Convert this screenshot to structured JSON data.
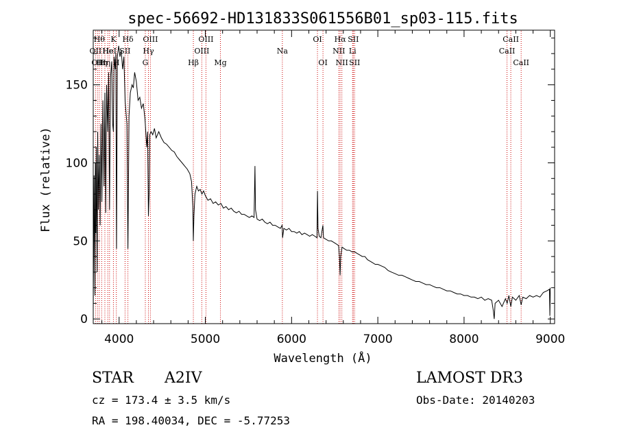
{
  "chart_data": {
    "type": "line",
    "title": "spec-56692-HD131833S061556B01_sp03-115.fits",
    "xlabel": "Wavelength (Å)",
    "ylabel": "Flux (relative)",
    "xlim": [
      3700,
      9050
    ],
    "ylim": [
      -3,
      185
    ],
    "xticks": [
      4000,
      5000,
      6000,
      7000,
      8000,
      9000
    ],
    "yticks": [
      0,
      50,
      100,
      150
    ],
    "xtick_labels": [
      "4000",
      "5000",
      "6000",
      "7000",
      "8000",
      "9000"
    ],
    "ytick_labels": [
      "0",
      "50",
      "100",
      "150"
    ],
    "grid": false,
    "line_color": "#000000",
    "marker_line_color": "#cc0000",
    "series": [
      {
        "points": [
          [
            3700,
            5
          ],
          [
            3710,
            92
          ],
          [
            3720,
            15
          ],
          [
            3725,
            100
          ],
          [
            3730,
            55
          ],
          [
            3735,
            110
          ],
          [
            3745,
            30
          ],
          [
            3752,
            120
          ],
          [
            3760,
            70
          ],
          [
            3770,
            105
          ],
          [
            3780,
            60
          ],
          [
            3790,
            125
          ],
          [
            3800,
            75
          ],
          [
            3812,
            140
          ],
          [
            3825,
            85
          ],
          [
            3835,
            145
          ],
          [
            3845,
            68
          ],
          [
            3855,
            150
          ],
          [
            3868,
            120
          ],
          [
            3878,
            158
          ],
          [
            3889,
            70
          ],
          [
            3900,
            155
          ],
          [
            3915,
            165
          ],
          [
            3925,
            125
          ],
          [
            3934,
            120
          ],
          [
            3942,
            168
          ],
          [
            3955,
            160
          ],
          [
            3962,
            170
          ],
          [
            3970,
            45
          ],
          [
            3980,
            168
          ],
          [
            3995,
            175
          ],
          [
            4010,
            168
          ],
          [
            4025,
            172
          ],
          [
            4040,
            160
          ],
          [
            4055,
            168
          ],
          [
            4070,
            140
          ],
          [
            4090,
            125
          ],
          [
            4102,
            45
          ],
          [
            4115,
            130
          ],
          [
            4130,
            145
          ],
          [
            4150,
            150
          ],
          [
            4165,
            148
          ],
          [
            4180,
            158
          ],
          [
            4200,
            152
          ],
          [
            4220,
            140
          ],
          [
            4240,
            142
          ],
          [
            4260,
            135
          ],
          [
            4280,
            138
          ],
          [
            4300,
            128
          ],
          [
            4320,
            110
          ],
          [
            4330,
            120
          ],
          [
            4340,
            66
          ],
          [
            4348,
            80
          ],
          [
            4356,
            118
          ],
          [
            4370,
            120
          ],
          [
            4390,
            118
          ],
          [
            4410,
            122
          ],
          [
            4430,
            116
          ],
          [
            4460,
            120
          ],
          [
            4490,
            116
          ],
          [
            4520,
            113
          ],
          [
            4550,
            112
          ],
          [
            4580,
            110
          ],
          [
            4610,
            108
          ],
          [
            4640,
            107
          ],
          [
            4670,
            104
          ],
          [
            4700,
            102
          ],
          [
            4730,
            100
          ],
          [
            4760,
            98
          ],
          [
            4790,
            96
          ],
          [
            4820,
            93
          ],
          [
            4840,
            88
          ],
          [
            4855,
            72
          ],
          [
            4861,
            50
          ],
          [
            4868,
            66
          ],
          [
            4880,
            80
          ],
          [
            4900,
            85
          ],
          [
            4920,
            82
          ],
          [
            4940,
            83
          ],
          [
            4960,
            80
          ],
          [
            4980,
            82
          ],
          [
            5000,
            79
          ],
          [
            5030,
            76
          ],
          [
            5060,
            77
          ],
          [
            5090,
            74
          ],
          [
            5120,
            75
          ],
          [
            5150,
            73
          ],
          [
            5180,
            74
          ],
          [
            5210,
            71
          ],
          [
            5240,
            72
          ],
          [
            5270,
            70
          ],
          [
            5300,
            71
          ],
          [
            5330,
            69
          ],
          [
            5360,
            68
          ],
          [
            5390,
            69
          ],
          [
            5420,
            67
          ],
          [
            5450,
            67
          ],
          [
            5480,
            66
          ],
          [
            5510,
            65
          ],
          [
            5540,
            66
          ],
          [
            5565,
            65
          ],
          [
            5575,
            98
          ],
          [
            5582,
            70
          ],
          [
            5600,
            64
          ],
          [
            5630,
            63
          ],
          [
            5660,
            64
          ],
          [
            5690,
            62
          ],
          [
            5720,
            61
          ],
          [
            5750,
            62
          ],
          [
            5780,
            60
          ],
          [
            5810,
            60
          ],
          [
            5840,
            59
          ],
          [
            5870,
            58
          ],
          [
            5890,
            60
          ],
          [
            5896,
            52
          ],
          [
            5910,
            58
          ],
          [
            5940,
            57
          ],
          [
            5970,
            58
          ],
          [
            6000,
            56
          ],
          [
            6030,
            56
          ],
          [
            6060,
            55
          ],
          [
            6090,
            56
          ],
          [
            6120,
            54
          ],
          [
            6150,
            55
          ],
          [
            6180,
            54
          ],
          [
            6210,
            53
          ],
          [
            6240,
            54
          ],
          [
            6270,
            53
          ],
          [
            6295,
            52
          ],
          [
            6300,
            82
          ],
          [
            6307,
            58
          ],
          [
            6320,
            53
          ],
          [
            6340,
            52
          ],
          [
            6363,
            60
          ],
          [
            6370,
            52
          ],
          [
            6400,
            51
          ],
          [
            6430,
            50
          ],
          [
            6460,
            50
          ],
          [
            6490,
            49
          ],
          [
            6520,
            48
          ],
          [
            6545,
            47
          ],
          [
            6555,
            40
          ],
          [
            6563,
            28
          ],
          [
            6570,
            40
          ],
          [
            6585,
            46
          ],
          [
            6610,
            45
          ],
          [
            6640,
            44
          ],
          [
            6670,
            44
          ],
          [
            6700,
            43
          ],
          [
            6730,
            43
          ],
          [
            6760,
            42
          ],
          [
            6790,
            41
          ],
          [
            6820,
            40
          ],
          [
            6850,
            40
          ],
          [
            6880,
            38
          ],
          [
            6910,
            37
          ],
          [
            6940,
            36
          ],
          [
            6970,
            35
          ],
          [
            7000,
            35
          ],
          [
            7040,
            34
          ],
          [
            7080,
            33
          ],
          [
            7120,
            31
          ],
          [
            7160,
            30
          ],
          [
            7200,
            29
          ],
          [
            7240,
            28
          ],
          [
            7280,
            28
          ],
          [
            7320,
            27
          ],
          [
            7360,
            26
          ],
          [
            7400,
            25
          ],
          [
            7440,
            24
          ],
          [
            7480,
            24
          ],
          [
            7520,
            23
          ],
          [
            7560,
            22
          ],
          [
            7600,
            22
          ],
          [
            7640,
            21
          ],
          [
            7680,
            20
          ],
          [
            7720,
            20
          ],
          [
            7760,
            19
          ],
          [
            7800,
            18
          ],
          [
            7840,
            18
          ],
          [
            7880,
            17
          ],
          [
            7920,
            16
          ],
          [
            7960,
            16
          ],
          [
            8000,
            15
          ],
          [
            8040,
            15
          ],
          [
            8080,
            14
          ],
          [
            8120,
            14
          ],
          [
            8160,
            13
          ],
          [
            8200,
            14
          ],
          [
            8240,
            12
          ],
          [
            8280,
            13
          ],
          [
            8320,
            12
          ],
          [
            8340,
            5
          ],
          [
            8350,
            0
          ],
          [
            8360,
            10
          ],
          [
            8400,
            12
          ],
          [
            8440,
            8
          ],
          [
            8480,
            13
          ],
          [
            8500,
            10
          ],
          [
            8520,
            15
          ],
          [
            8542,
            8
          ],
          [
            8560,
            14
          ],
          [
            8600,
            12
          ],
          [
            8640,
            15
          ],
          [
            8662,
            9
          ],
          [
            8680,
            14
          ],
          [
            8720,
            13
          ],
          [
            8760,
            15
          ],
          [
            8800,
            14
          ],
          [
            8840,
            15
          ],
          [
            8880,
            14
          ],
          [
            8920,
            17
          ],
          [
            8960,
            18
          ],
          [
            8990,
            19
          ],
          [
            8995,
            2
          ],
          [
            9000,
            20
          ]
        ]
      }
    ],
    "line_markers": [
      {
        "wavelength": 3727,
        "label": "OII",
        "row": 1
      },
      {
        "wavelength": 3750,
        "label": "OII",
        "row": 2
      },
      {
        "wavelength": 3770,
        "label": "Hθ",
        "row": 0
      },
      {
        "wavelength": 3798,
        "label": "Hη",
        "row": 2
      },
      {
        "wavelength": 3835,
        "label": "Hη",
        "row": 2
      },
      {
        "wavelength": 3869,
        "label": "He",
        "row": 1
      },
      {
        "wavelength": 3889,
        "label": "HeI",
        "row": 1
      },
      {
        "wavelength": 3934,
        "label": "K",
        "row": 0
      },
      {
        "wavelength": 3968,
        "label": "H",
        "row": 2
      },
      {
        "wavelength": 4069,
        "label": "SII",
        "row": 1
      },
      {
        "wavelength": 4102,
        "label": "Hδ",
        "row": 0
      },
      {
        "wavelength": 4304,
        "label": "G",
        "row": 2
      },
      {
        "wavelength": 4340,
        "label": "Hγ",
        "row": 1
      },
      {
        "wavelength": 4363,
        "label": "OIII",
        "row": 0
      },
      {
        "wavelength": 4861,
        "label": "Hβ",
        "row": 2
      },
      {
        "wavelength": 4959,
        "label": "OIII",
        "row": 1
      },
      {
        "wavelength": 5007,
        "label": "OIII",
        "row": 0
      },
      {
        "wavelength": 5175,
        "label": "Mg",
        "row": 2
      },
      {
        "wavelength": 5893,
        "label": "Na",
        "row": 1
      },
      {
        "wavelength": 6300,
        "label": "OI",
        "row": 0
      },
      {
        "wavelength": 6364,
        "label": "OI",
        "row": 2
      },
      {
        "wavelength": 6548,
        "label": "NII",
        "row": 1
      },
      {
        "wavelength": 6563,
        "label": "Hα",
        "row": 0
      },
      {
        "wavelength": 6583,
        "label": "NII",
        "row": 2
      },
      {
        "wavelength": 6707,
        "label": "Li",
        "row": 1
      },
      {
        "wavelength": 6716,
        "label": "SII",
        "row": 0
      },
      {
        "wavelength": 6731,
        "label": "SII",
        "row": 2
      },
      {
        "wavelength": 8498,
        "label": "CaII",
        "row": 1
      },
      {
        "wavelength": 8542,
        "label": "CaII",
        "row": 0
      },
      {
        "wavelength": 8662,
        "label": "CaII",
        "row": 2
      }
    ]
  },
  "info": {
    "object_class": "STAR",
    "subclass": "A2IV",
    "cz": "cz = 173.4 ± 3.5 km/s",
    "coords": "RA = 198.40034, DEC =  -5.77253",
    "survey": "LAMOST DR3",
    "obs_date": "Obs-Date: 20140203"
  }
}
